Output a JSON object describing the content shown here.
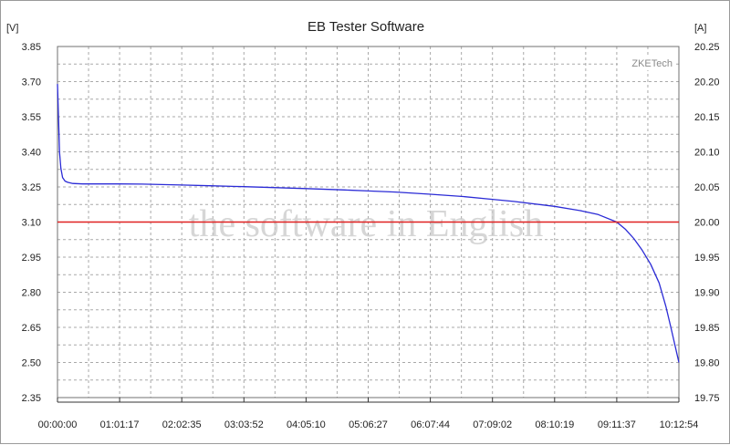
{
  "chart_data": {
    "type": "line",
    "title": "EB Tester Software",
    "y_left_unit": "[V]",
    "y_right_unit": "[A]",
    "brand_label": "ZKETech",
    "watermark": "the software in English",
    "grid": true,
    "x_tick_labels": [
      "00:00:00",
      "01:01:17",
      "02:02:35",
      "03:03:52",
      "04:05:10",
      "05:06:27",
      "06:07:44",
      "07:09:02",
      "08:10:19",
      "09:11:37",
      "10:12:54"
    ],
    "x_range_seconds": [
      0,
      36774
    ],
    "y_left_ticks": [
      "3.85",
      "3.70",
      "3.55",
      "3.40",
      "3.25",
      "3.10",
      "2.95",
      "2.80",
      "2.65",
      "2.50",
      "2.35"
    ],
    "y_left_range": [
      2.35,
      3.85
    ],
    "y_right_ticks": [
      "20.25",
      "20.20",
      "20.15",
      "20.10",
      "20.05",
      "20.00",
      "19.95",
      "19.90",
      "19.85",
      "19.80",
      "19.75"
    ],
    "y_right_range": [
      19.75,
      20.25
    ],
    "series": [
      {
        "axis": "left",
        "color": "#2b2bd6",
        "x_seconds": [
          0,
          60,
          120,
          200,
          300,
          450,
          600,
          900,
          1500,
          2500,
          3678,
          5000,
          7355,
          9000,
          11033,
          13000,
          14710,
          17000,
          18387,
          20000,
          22065,
          24000,
          25742,
          27000,
          29419,
          31000,
          32000,
          33097,
          33600,
          34100,
          34600,
          35100,
          35600,
          36000,
          36300,
          36550,
          36774
        ],
        "values": [
          3.69,
          3.55,
          3.4,
          3.33,
          3.29,
          3.275,
          3.27,
          3.265,
          3.263,
          3.263,
          3.263,
          3.262,
          3.258,
          3.255,
          3.251,
          3.247,
          3.243,
          3.237,
          3.233,
          3.228,
          3.219,
          3.209,
          3.197,
          3.188,
          3.167,
          3.148,
          3.132,
          3.1,
          3.07,
          3.03,
          2.98,
          2.92,
          2.84,
          2.74,
          2.65,
          2.57,
          2.5
        ]
      },
      {
        "axis": "right",
        "color": "#e02020",
        "x_seconds": [
          0,
          36774
        ],
        "values": [
          20.0,
          20.0
        ]
      }
    ]
  }
}
